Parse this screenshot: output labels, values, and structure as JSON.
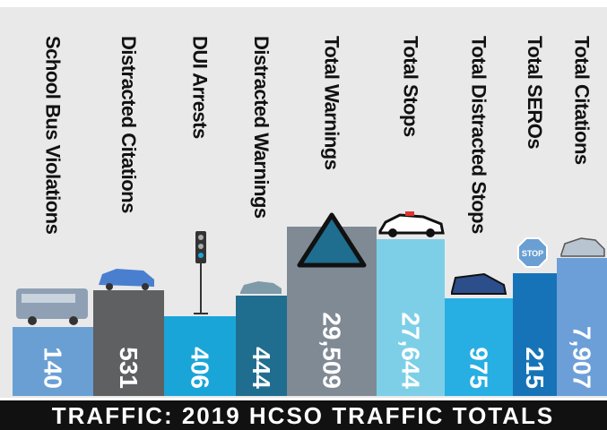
{
  "chart_data": {
    "type": "bar",
    "title": "TRAFFIC: 2019 HCSO TRAFFIC TOTALS",
    "categories": [
      "School Bus Violations",
      "Distracted Citations",
      "DUI Arrests",
      "Distracted Warnings",
      "Total Warnings",
      "Total Stops",
      "Total Distracted Stops",
      "Total SEROs",
      "Total Citations"
    ],
    "values": [
      140,
      531,
      406,
      444,
      29509,
      27644,
      975,
      215,
      7907
    ],
    "value_labels": [
      "140",
      "531",
      "406",
      "444",
      "29,509",
      "27,644",
      "975",
      "215",
      "7,907"
    ],
    "colors": [
      "#6a9fd4",
      "#5f6062",
      "#1aa5d8",
      "#1f6e8f",
      "#7f8a94",
      "#7dcfe8",
      "#27aee3",
      "#1773b8",
      "#6c9fd8"
    ]
  }
}
